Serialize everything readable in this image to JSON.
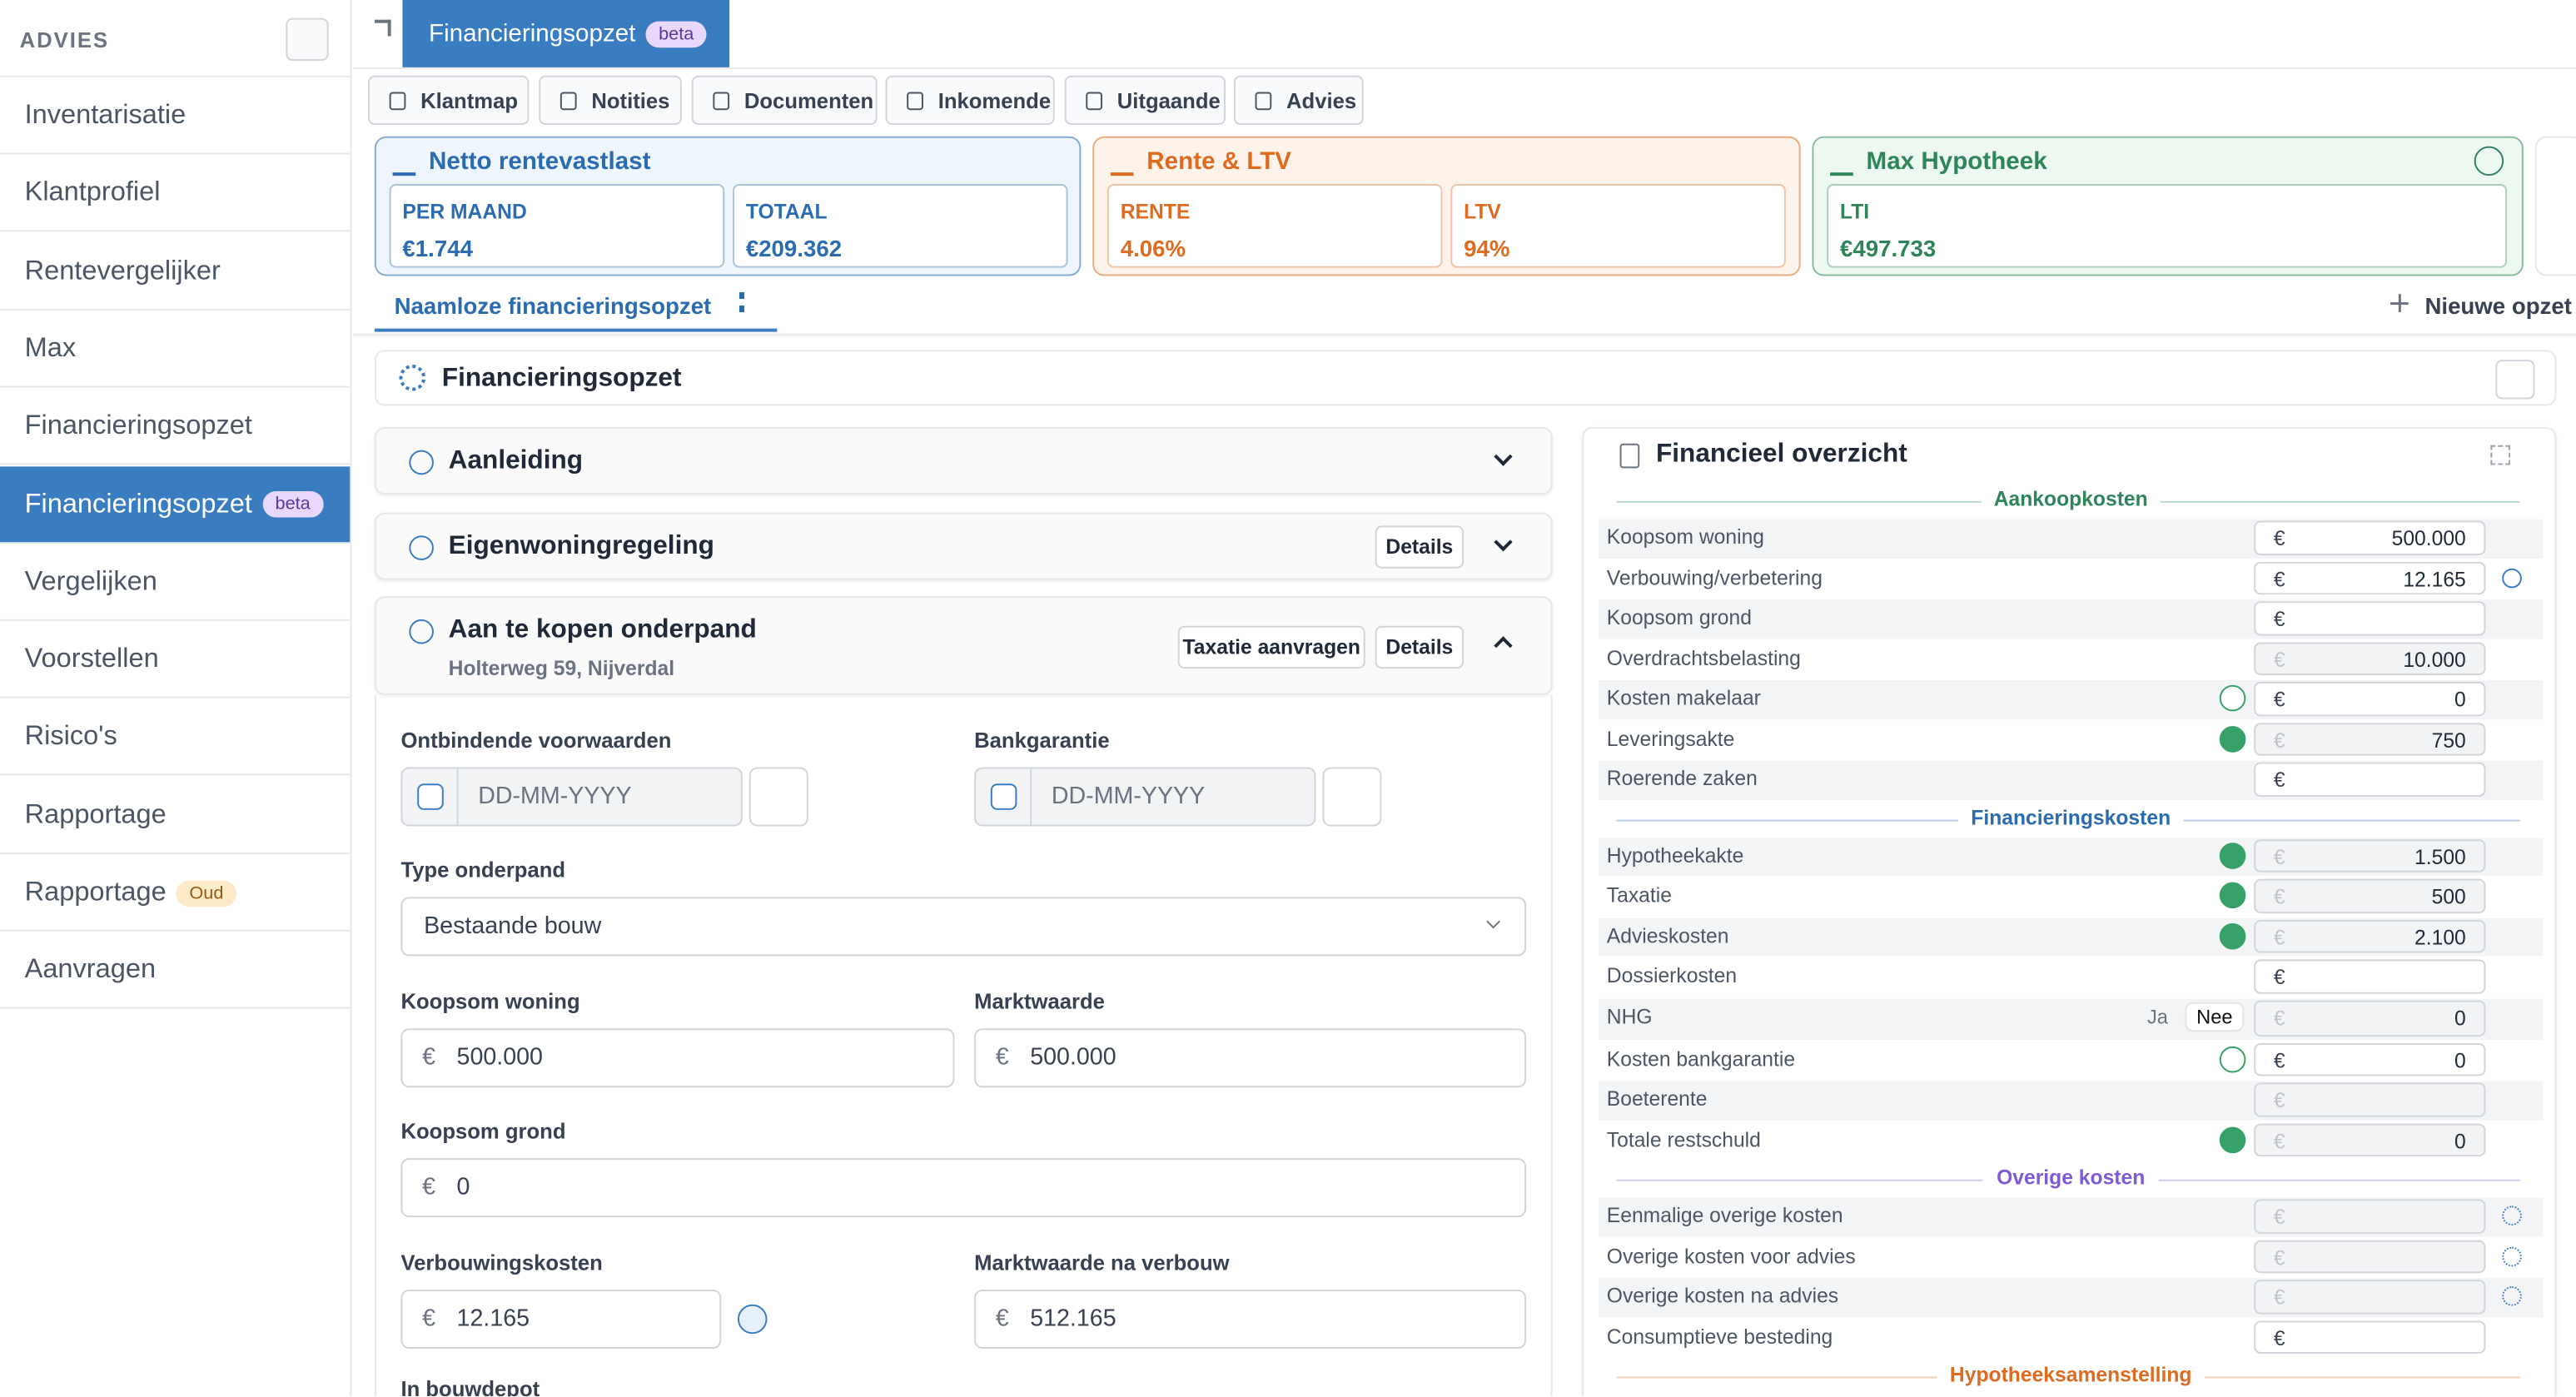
{
  "sidebar": {
    "title": "ADVIES",
    "items": [
      {
        "label": "Inventarisatie"
      },
      {
        "label": "Klantprofiel"
      },
      {
        "label": "Rentevergelijker"
      },
      {
        "label": "Max"
      },
      {
        "label": "Financieringsopzet"
      },
      {
        "label": "Financieringsopzet",
        "badge": "beta",
        "active": true
      },
      {
        "label": "Vergelijken"
      },
      {
        "label": "Voorstellen"
      },
      {
        "label": "Risico's"
      },
      {
        "label": "Rapportage"
      },
      {
        "label": "Rapportage",
        "badge": "Oud"
      },
      {
        "label": "Aanvragen"
      }
    ]
  },
  "top_tab": {
    "label": "Financieringsopzet",
    "badge": "beta"
  },
  "nav_tabs": [
    "Klantmap",
    "Notities",
    "Documenten",
    "Inkomende",
    "Uitgaande",
    "Advies"
  ],
  "cards": [
    {
      "title": "Netto rentevastlast",
      "color": "#2b6cb0",
      "fields": [
        {
          "label": "PER MAAND",
          "value": "€1.744"
        },
        {
          "label": "TOTAAL",
          "value": "€209.362"
        }
      ]
    },
    {
      "title": "Rente & LTV",
      "color": "#dd6b20",
      "fields": [
        {
          "label": "RENTE",
          "value": "4.06%"
        },
        {
          "label": "LTV",
          "value": "94%"
        }
      ]
    },
    {
      "title": "Max Hypotheek",
      "color": "#2f855a",
      "fields": [
        {
          "label": "LTI",
          "value": "€497.733"
        }
      ]
    }
  ],
  "scenario_tab": "Naamloze financieringsopzet",
  "new_scenario": "Nieuwe opzet",
  "section_title": "Financieringsopzet",
  "accordions": [
    {
      "title": "Aanleiding"
    },
    {
      "title": "Eigenwoningregeling",
      "buttons": [
        "Details"
      ]
    },
    {
      "title": "Aan te kopen onderpand",
      "subtitle": "Holterweg 59, Nijverdal",
      "buttons": [
        "Taxatie aanvragen",
        "Details"
      ]
    }
  ],
  "currency": "€",
  "form": [
    {
      "label": "Ontbindende voorwaarden",
      "placeholder": "DD-MM-YYYY"
    },
    {
      "label": "Bankgarantie",
      "placeholder": "DD-MM-YYYY"
    },
    {
      "label": "Type onderpand",
      "value": "Bestaande bouw"
    },
    {
      "label": "Koopsom woning",
      "value": "500.000"
    },
    {
      "label": "Marktwaarde",
      "value": "500.000"
    },
    {
      "label": "Koopsom grond",
      "value": "0"
    },
    {
      "label": "Verbouwingskosten",
      "value": "12.165"
    },
    {
      "label": "Marktwaarde na verbouw",
      "value": "512.165"
    },
    {
      "label": "In bouwdepot"
    }
  ],
  "overview": {
    "title": "Financieel overzicht",
    "groups": [
      {
        "title": "Aankoopkosten",
        "color": "#2f855a",
        "rows": [
          {
            "label": "Koopsom woning",
            "value": "500.000"
          },
          {
            "label": "Verbouwing/verbetering",
            "value": "12.165",
            "icon": "bolt"
          },
          {
            "label": "Koopsom grond"
          },
          {
            "label": "Overdrachtsbelasting",
            "value": "10.000",
            "disabled": true
          },
          {
            "label": "Kosten makelaar",
            "value": "0",
            "status": "unchecked"
          },
          {
            "label": "Leveringsakte",
            "value": "750",
            "status": "checked",
            "disabled": true
          },
          {
            "label": "Roerende zaken"
          }
        ]
      },
      {
        "title": "Financieringskosten",
        "color": "#2b6cb0",
        "rows": [
          {
            "label": "Hypotheekakte",
            "value": "1.500",
            "status": "checked",
            "disabled": true
          },
          {
            "label": "Taxatie",
            "value": "500",
            "status": "checked",
            "disabled": true
          },
          {
            "label": "Advieskosten",
            "value": "2.100",
            "status": "checked",
            "disabled": true
          },
          {
            "label": "Dossierkosten"
          },
          {
            "label": "NHG",
            "value": "0",
            "disabled": true,
            "toggle": [
              "Ja",
              "Nee"
            ]
          },
          {
            "label": "Kosten bankgarantie",
            "value": "0",
            "status": "unchecked"
          },
          {
            "label": "Boeterente",
            "disabled": true
          },
          {
            "label": "Totale restschuld",
            "value": "0",
            "status": "checked",
            "disabled": true
          }
        ]
      },
      {
        "title": "Overige kosten",
        "color": "#805ad5",
        "rows": [
          {
            "label": "Eenmalige overige kosten",
            "disabled": true,
            "icon": "gear"
          },
          {
            "label": "Overige kosten voor advies",
            "disabled": true,
            "icon": "gear"
          },
          {
            "label": "Overige kosten na advies",
            "disabled": true,
            "icon": "gear"
          },
          {
            "label": "Consumptieve besteding"
          }
        ]
      },
      {
        "title": "Hypotheeksamenstelling",
        "color": "#dd6b20",
        "rows": []
      }
    ]
  }
}
